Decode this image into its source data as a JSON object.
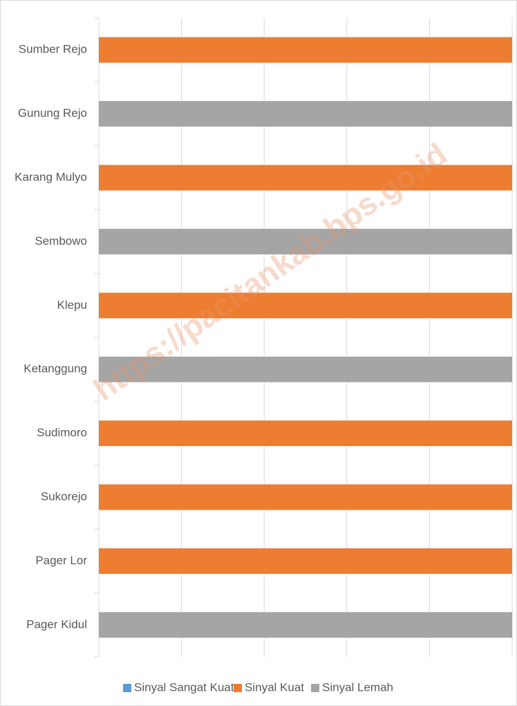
{
  "chart_data": {
    "type": "stacked_bar_horizontal",
    "categories": [
      "Sumber Rejo",
      "Gunung Rejo",
      "Karang Mulyo",
      "Sembowo",
      "Klepu",
      "Ketanggung",
      "Sudimoro",
      "Sukorejo",
      "Pager Lor",
      "Pager Kidul"
    ],
    "series": [
      {
        "name": "Sinyal Sangat Kuat",
        "color": "#5b9bd5",
        "values": [
          0,
          0,
          0,
          0,
          0,
          0,
          0,
          0,
          0,
          0
        ]
      },
      {
        "name": "Sinyal Kuat",
        "color": "#ed7d31",
        "values": [
          100,
          0,
          100,
          0,
          100,
          0,
          100,
          100,
          100,
          0
        ]
      },
      {
        "name": "Sinyal Lemah",
        "color": "#a5a5a5",
        "values": [
          0,
          100,
          0,
          100,
          0,
          100,
          0,
          0,
          0,
          100
        ]
      }
    ],
    "xlim": [
      0,
      100
    ],
    "xticks": [
      0,
      20,
      40,
      60,
      80,
      100
    ],
    "grid": true,
    "legend": "bottom",
    "annotations": [
      "https://pacitankab.bps.go.id"
    ]
  }
}
